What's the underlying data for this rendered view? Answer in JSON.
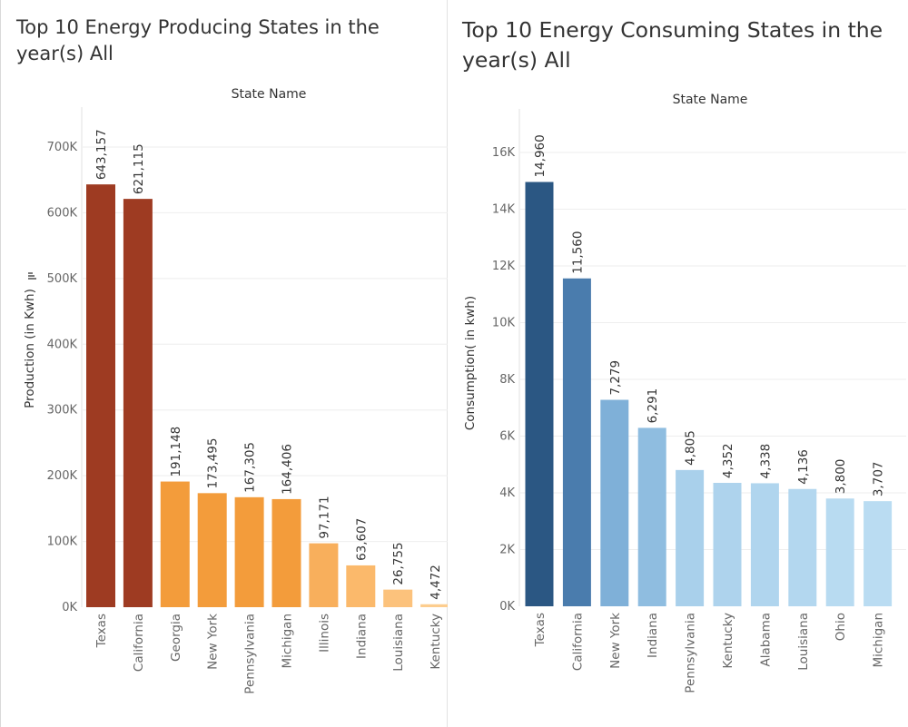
{
  "chart_data": [
    {
      "type": "bar",
      "title": "Top 10 Energy Producing States in the year(s) All",
      "header": "State Name",
      "ylabel": "Production (in Kwh)",
      "ylabel_icon": "sort-descending-icon",
      "categories": [
        "Texas",
        "California",
        "Georgia",
        "New York",
        "Pennsylvania",
        "Michigan",
        "Illinois",
        "Indiana",
        "Louisiana",
        "Kentucky"
      ],
      "values": [
        643157,
        621115,
        191148,
        173495,
        167305,
        164406,
        97171,
        63607,
        26755,
        4472
      ],
      "data_labels": [
        "643,157",
        "621,115",
        "191,148",
        "173,495",
        "167,305",
        "164,406",
        "97,171",
        "63,607",
        "26,755",
        "4,472"
      ],
      "colors": [
        "#9e3b22",
        "#9e3b22",
        "#f39c3b",
        "#f39c3b",
        "#f39c3b",
        "#f39c3b",
        "#f8af5c",
        "#fbb96b",
        "#fcc27c",
        "#fdcd8e"
      ],
      "yticks": [
        0,
        100000,
        200000,
        300000,
        400000,
        500000,
        600000,
        700000
      ],
      "ytick_labels": [
        "0K",
        "100K",
        "200K",
        "300K",
        "400K",
        "500K",
        "600K",
        "700K"
      ],
      "ylim": [
        0,
        700000
      ],
      "grid": true
    },
    {
      "type": "bar",
      "title": "Top 10 Energy Consuming States in the year(s) All",
      "header": "State Name",
      "ylabel": "Consumption( in kwh)",
      "categories": [
        "Texas",
        "California",
        "New York",
        "Indiana",
        "Pennsylvania",
        "Kentucky",
        "Alabama",
        "Louisiana",
        "Ohio",
        "Michigan"
      ],
      "values": [
        14960,
        11560,
        7279,
        6291,
        4805,
        4352,
        4338,
        4136,
        3800,
        3707
      ],
      "data_labels": [
        "14,960",
        "11,560",
        "7,279",
        "6,291",
        "4,805",
        "4,352",
        "4,338",
        "4,136",
        "3,800",
        "3,707"
      ],
      "colors": [
        "#2b5783",
        "#4a7cad",
        "#7fb0d8",
        "#8fbde0",
        "#a9d0eb",
        "#aed3ed",
        "#b0d5ee",
        "#b3d7ef",
        "#b8dbf1",
        "#badcf2"
      ],
      "yticks": [
        0,
        2000,
        4000,
        6000,
        8000,
        10000,
        12000,
        14000,
        16000
      ],
      "ytick_labels": [
        "0K",
        "2K",
        "4K",
        "6K",
        "8K",
        "10K",
        "12K",
        "14K",
        "16K"
      ],
      "ylim": [
        0,
        16000
      ],
      "grid": true
    }
  ]
}
